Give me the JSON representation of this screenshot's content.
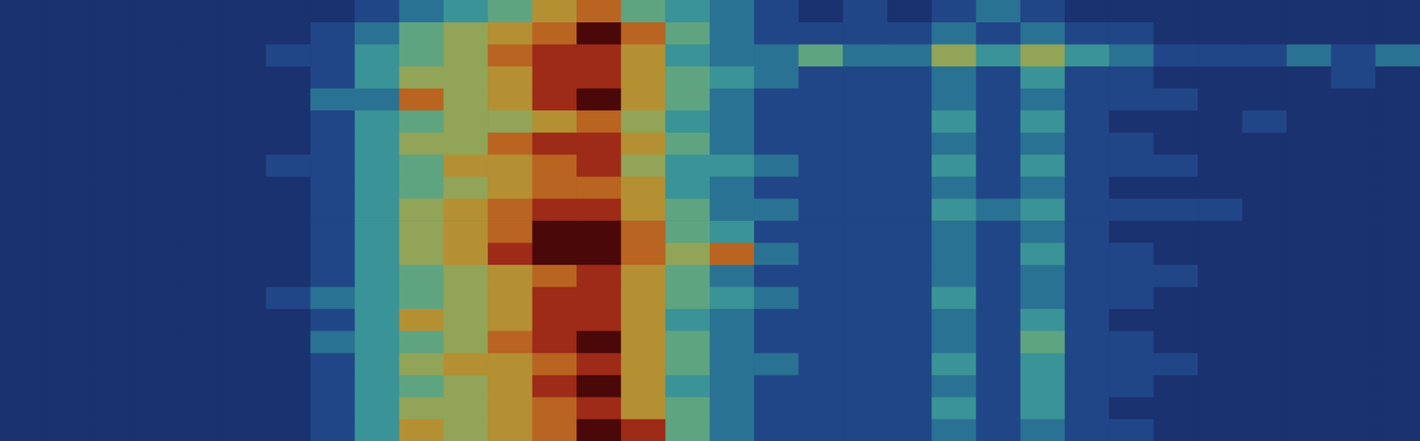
{
  "chart_data": {
    "type": "heatmap",
    "tick_labels": false,
    "grid": false,
    "cells": [
      [
        0,
        0,
        0,
        0,
        0,
        0,
        0,
        0,
        1,
        2,
        3,
        4,
        6,
        7,
        4,
        3,
        2,
        1,
        0,
        1,
        0,
        1,
        2,
        1,
        0,
        0,
        0,
        0,
        0,
        0,
        0,
        0
      ],
      [
        0,
        0,
        0,
        0,
        0,
        0,
        0,
        1,
        2,
        4,
        5,
        6,
        7,
        9,
        7,
        4,
        2,
        1,
        1,
        1,
        1,
        2,
        1,
        2,
        1,
        1,
        0,
        0,
        0,
        0,
        0,
        0
      ],
      [
        0,
        0,
        0,
        0,
        0,
        0,
        1,
        1,
        3,
        4,
        5,
        7,
        8,
        8,
        6,
        3,
        2,
        2,
        4,
        2,
        2,
        5,
        3,
        5,
        3,
        2,
        1,
        1,
        1,
        2,
        1,
        2
      ],
      [
        0,
        0,
        0,
        0,
        0,
        0,
        0,
        1,
        3,
        5,
        5,
        6,
        8,
        8,
        6,
        4,
        3,
        2,
        1,
        1,
        1,
        2,
        1,
        3,
        1,
        1,
        0,
        0,
        0,
        0,
        1,
        0
      ],
      [
        0,
        0,
        0,
        0,
        0,
        0,
        0,
        2,
        2,
        7,
        5,
        6,
        8,
        9,
        6,
        4,
        2,
        1,
        1,
        1,
        1,
        2,
        1,
        2,
        1,
        1,
        1,
        0,
        0,
        0,
        0,
        0
      ],
      [
        0,
        0,
        0,
        0,
        0,
        0,
        0,
        1,
        3,
        4,
        5,
        5,
        6,
        7,
        5,
        3,
        2,
        1,
        1,
        1,
        1,
        3,
        1,
        3,
        1,
        0,
        0,
        0,
        1,
        0,
        0,
        0
      ],
      [
        0,
        0,
        0,
        0,
        0,
        0,
        0,
        1,
        3,
        5,
        5,
        7,
        8,
        8,
        6,
        4,
        2,
        1,
        1,
        1,
        1,
        2,
        1,
        2,
        1,
        1,
        0,
        0,
        0,
        0,
        0,
        0
      ],
      [
        0,
        0,
        0,
        0,
        0,
        0,
        1,
        1,
        3,
        4,
        6,
        6,
        7,
        8,
        5,
        3,
        3,
        2,
        1,
        1,
        1,
        3,
        1,
        3,
        1,
        1,
        1,
        0,
        0,
        0,
        0,
        0
      ],
      [
        0,
        0,
        0,
        0,
        0,
        0,
        0,
        1,
        3,
        4,
        5,
        6,
        7,
        7,
        6,
        3,
        2,
        1,
        1,
        1,
        1,
        2,
        1,
        2,
        1,
        0,
        0,
        0,
        0,
        0,
        0,
        0
      ],
      [
        0,
        0,
        0,
        0,
        0,
        0,
        0,
        1,
        3,
        5,
        6,
        7,
        8,
        8,
        6,
        4,
        2,
        2,
        1,
        1,
        1,
        3,
        2,
        3,
        1,
        1,
        1,
        1,
        0,
        0,
        0,
        0
      ],
      [
        0,
        0,
        0,
        0,
        0,
        0,
        0,
        1,
        3,
        5,
        6,
        7,
        9,
        9,
        7,
        4,
        3,
        1,
        1,
        1,
        1,
        2,
        1,
        2,
        1,
        0,
        0,
        0,
        0,
        0,
        0,
        0
      ],
      [
        0,
        0,
        0,
        0,
        0,
        0,
        0,
        1,
        3,
        5,
        6,
        8,
        9,
        9,
        7,
        5,
        7,
        2,
        1,
        1,
        1,
        2,
        1,
        3,
        1,
        1,
        0,
        0,
        0,
        0,
        0,
        0
      ],
      [
        0,
        0,
        0,
        0,
        0,
        0,
        0,
        1,
        3,
        4,
        5,
        6,
        7,
        8,
        6,
        4,
        2,
        1,
        1,
        1,
        1,
        2,
        1,
        2,
        1,
        1,
        1,
        0,
        0,
        0,
        0,
        0
      ],
      [
        0,
        0,
        0,
        0,
        0,
        0,
        1,
        2,
        3,
        4,
        5,
        6,
        8,
        8,
        6,
        4,
        3,
        2,
        1,
        1,
        1,
        3,
        1,
        2,
        1,
        1,
        0,
        0,
        0,
        0,
        0,
        0
      ],
      [
        0,
        0,
        0,
        0,
        0,
        0,
        0,
        1,
        3,
        6,
        5,
        6,
        8,
        8,
        6,
        3,
        2,
        1,
        1,
        1,
        1,
        2,
        1,
        3,
        1,
        0,
        0,
        0,
        0,
        0,
        0,
        0
      ],
      [
        0,
        0,
        0,
        0,
        0,
        0,
        0,
        2,
        3,
        4,
        5,
        7,
        8,
        9,
        6,
        4,
        2,
        1,
        1,
        1,
        1,
        2,
        1,
        4,
        1,
        1,
        0,
        0,
        0,
        0,
        0,
        0
      ],
      [
        0,
        0,
        0,
        0,
        0,
        0,
        0,
        1,
        3,
        5,
        6,
        6,
        7,
        8,
        6,
        4,
        2,
        2,
        1,
        1,
        1,
        3,
        1,
        3,
        1,
        1,
        1,
        0,
        0,
        0,
        0,
        0
      ],
      [
        0,
        0,
        0,
        0,
        0,
        0,
        0,
        1,
        3,
        4,
        5,
        6,
        8,
        9,
        6,
        3,
        2,
        1,
        1,
        1,
        1,
        2,
        1,
        3,
        1,
        1,
        0,
        0,
        0,
        0,
        0,
        0
      ],
      [
        0,
        0,
        0,
        0,
        0,
        0,
        0,
        1,
        3,
        5,
        5,
        6,
        7,
        8,
        6,
        4,
        2,
        1,
        1,
        1,
        1,
        3,
        1,
        3,
        1,
        0,
        0,
        0,
        0,
        0,
        0,
        0
      ],
      [
        0,
        0,
        0,
        0,
        0,
        0,
        0,
        1,
        3,
        6,
        5,
        6,
        7,
        9,
        8,
        4,
        2,
        1,
        1,
        1,
        1,
        2,
        1,
        2,
        1,
        1,
        0,
        0,
        0,
        0,
        0,
        0
      ]
    ]
  }
}
